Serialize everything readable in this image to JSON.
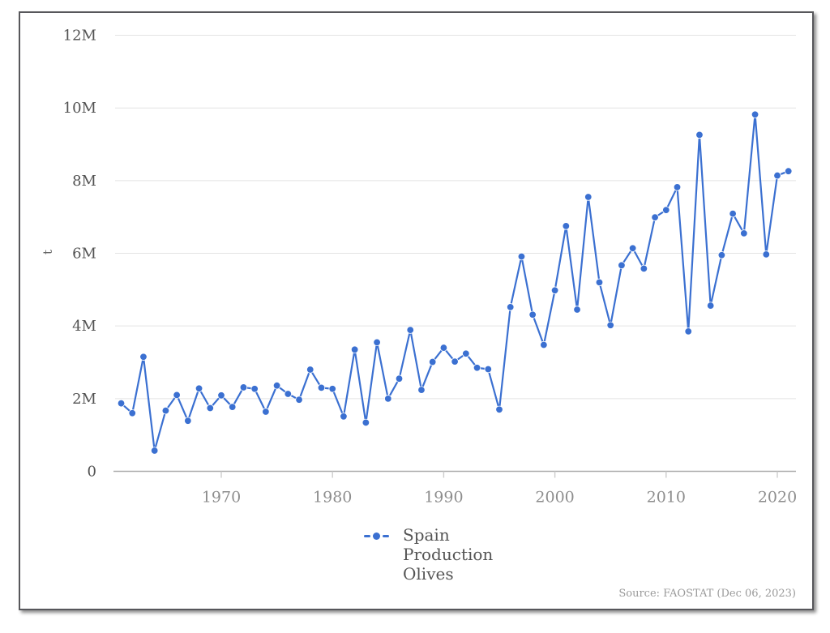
{
  "page": {
    "background": "#ffffff"
  },
  "colors": {
    "series": "#3b70d1",
    "grid": "#e4e4e4",
    "axis": "#aaaaaa",
    "tick_mark": "#cccccc",
    "xtick_label": "#8d8d8d",
    "ytick_label": "#525252",
    "legend_text": "#555555",
    "source_text": "#9a9a9a"
  },
  "legend": {
    "series_label_lines": [
      "Spain",
      "Production",
      "Olives"
    ]
  },
  "source_note": "Source: FAOSTAT (Dec 06, 2023)",
  "chart_data": {
    "type": "line",
    "title": "",
    "xlabel": "",
    "ylabel": "t",
    "ylim": [
      0,
      12000000
    ],
    "xlim": [
      1960.3,
      2021.7
    ],
    "grid": "horizontal",
    "legend_position": "bottom-center",
    "xticks": [
      1970,
      1980,
      1990,
      2000,
      2010,
      2020
    ],
    "yticks": [
      {
        "value": 0,
        "label": "0"
      },
      {
        "value": 2,
        "label": "2M"
      },
      {
        "value": 4,
        "label": "4M"
      },
      {
        "value": 6,
        "label": "6M"
      },
      {
        "value": 8,
        "label": "8M"
      },
      {
        "value": 10,
        "label": "10M"
      },
      {
        "value": 12,
        "label": "12M"
      }
    ],
    "series": [
      {
        "name": "Spain Production Olives",
        "color": "#3b70d1",
        "unit": "million t",
        "x": [
          1961,
          1962,
          1963,
          1964,
          1965,
          1966,
          1967,
          1968,
          1969,
          1970,
          1971,
          1972,
          1973,
          1974,
          1975,
          1976,
          1977,
          1978,
          1979,
          1980,
          1981,
          1982,
          1983,
          1984,
          1985,
          1986,
          1987,
          1988,
          1989,
          1990,
          1991,
          1992,
          1993,
          1994,
          1995,
          1996,
          1997,
          1998,
          1999,
          2000,
          2001,
          2002,
          2003,
          2004,
          2005,
          2006,
          2007,
          2008,
          2009,
          2010,
          2011,
          2012,
          2013,
          2014,
          2015,
          2016,
          2017,
          2018,
          2019,
          2020,
          2021
        ],
        "values_million_t": [
          1.87,
          1.6,
          3.15,
          0.57,
          1.67,
          2.1,
          1.39,
          2.28,
          1.74,
          2.09,
          1.77,
          2.31,
          2.27,
          1.64,
          2.36,
          2.13,
          1.97,
          2.8,
          2.3,
          2.27,
          1.51,
          3.35,
          1.34,
          3.55,
          2.0,
          2.55,
          3.89,
          2.24,
          3.01,
          3.4,
          3.02,
          3.24,
          2.85,
          2.81,
          1.7,
          4.52,
          5.91,
          4.31,
          3.48,
          4.98,
          6.75,
          4.45,
          7.55,
          5.2,
          4.02,
          5.67,
          6.14,
          5.58,
          6.99,
          7.19,
          7.82,
          3.85,
          9.26,
          4.56,
          5.95,
          7.09,
          6.55,
          9.82,
          5.97,
          8.14,
          8.26
        ]
      }
    ]
  }
}
